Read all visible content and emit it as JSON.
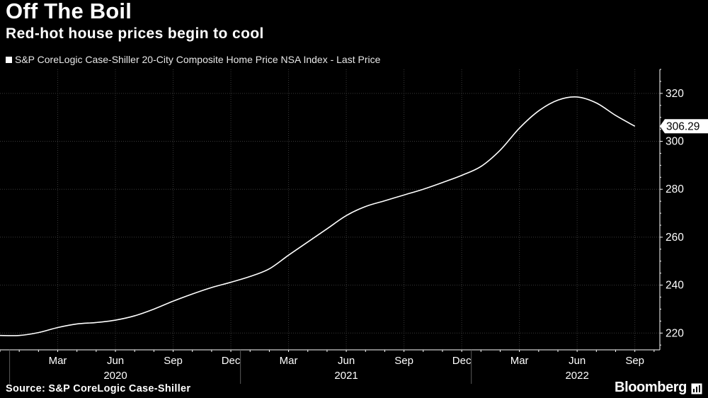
{
  "header": {
    "title": "Off The Boil",
    "subtitle": "Red-hot house prices begin to cool"
  },
  "footer": {
    "source": "Source: S&P CoreLogic Case-Shiller",
    "brand": "Bloomberg"
  },
  "colors": {
    "background": "#000000",
    "line": "#ffffff",
    "grid": "#3a3a3a"
  },
  "chart_data": {
    "type": "line",
    "title": "Off The Boil",
    "subtitle": "Red-hot house prices begin to cool",
    "legend": [
      "S&P CoreLogic Case-Shiller 20-City Composite Home Price NSA Index - Last Price"
    ],
    "legend_position": "top-left",
    "xlabel": "",
    "ylabel": "",
    "ylim": [
      213,
      330
    ],
    "yticks": [
      220,
      240,
      260,
      280,
      300,
      320
    ],
    "grid": true,
    "x_tick_labels": [
      "Mar",
      "Jun",
      "Sep",
      "Dec",
      "Mar",
      "Jun",
      "Sep",
      "Dec",
      "Mar",
      "Jun",
      "Sep"
    ],
    "x_tick_months": [
      2,
      5,
      8,
      11,
      14,
      17,
      20,
      23,
      26,
      29,
      32
    ],
    "x_year_labels": [
      {
        "label": "2020",
        "month": 5
      },
      {
        "label": "2021",
        "month": 17
      },
      {
        "label": "2022",
        "month": 29
      }
    ],
    "x_range": [
      -1,
      33.3
    ],
    "last_value_label": "306.29",
    "series": [
      {
        "name": "S&P CoreLogic Case-Shiller 20-City Composite Home Price NSA Index - Last Price",
        "x": [
          -1,
          0,
          1,
          2,
          3,
          4,
          5,
          6,
          7,
          8,
          9,
          10,
          11,
          12,
          13,
          14,
          15,
          16,
          17,
          18,
          19,
          20,
          21,
          22,
          23,
          24,
          25,
          26,
          27,
          28,
          29,
          30,
          31,
          32
        ],
        "values": [
          219.0,
          219.0,
          220.2,
          222.3,
          223.8,
          224.4,
          225.4,
          227.2,
          230.0,
          233.3,
          236.3,
          239.0,
          241.2,
          243.6,
          246.8,
          252.5,
          258.0,
          263.5,
          269.0,
          272.8,
          275.2,
          277.6,
          280.0,
          282.8,
          285.8,
          289.5,
          296.3,
          305.5,
          312.7,
          317.2,
          318.5,
          316.0,
          310.8,
          306.29
        ]
      }
    ]
  }
}
